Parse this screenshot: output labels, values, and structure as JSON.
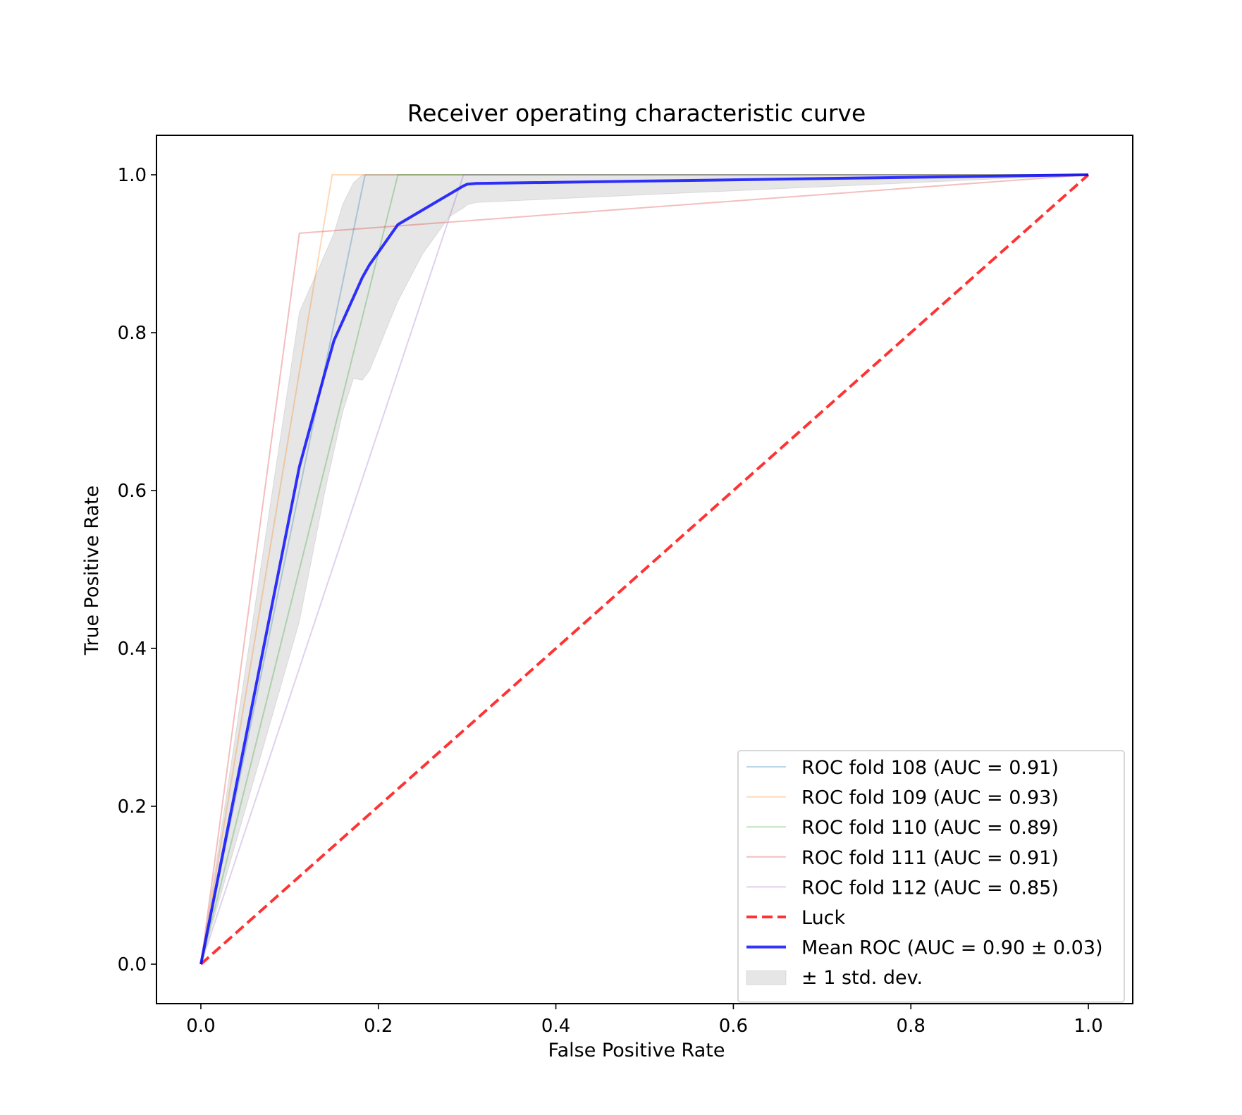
{
  "chart_data": {
    "type": "line",
    "title": "Receiver operating characteristic curve",
    "xlabel": "False Positive Rate",
    "ylabel": "True Positive Rate",
    "xlim": [
      -0.05,
      1.05
    ],
    "ylim": [
      -0.05,
      1.05
    ],
    "xticks": [
      "0.0",
      "0.2",
      "0.4",
      "0.6",
      "0.8",
      "1.0"
    ],
    "yticks": [
      "0.0",
      "0.2",
      "0.4",
      "0.6",
      "0.8",
      "1.0"
    ],
    "xtick_values": [
      0.0,
      0.2,
      0.4,
      0.6,
      0.8,
      1.0
    ],
    "ytick_values": [
      0.0,
      0.2,
      0.4,
      0.6,
      0.8,
      1.0
    ],
    "legend_position": "lower-right",
    "series": [
      {
        "name": "ROC fold 108 (AUC = 0.91)",
        "color": "#1f77b4",
        "alpha": 0.3,
        "style": "solid",
        "x": [
          0.0,
          0.185,
          1.0
        ],
        "y": [
          0.0,
          1.0,
          1.0
        ]
      },
      {
        "name": "ROC fold 109 (AUC = 0.93)",
        "color": "#ff7f0e",
        "alpha": 0.3,
        "style": "solid",
        "x": [
          0.0,
          0.148,
          1.0
        ],
        "y": [
          0.0,
          1.0,
          1.0
        ]
      },
      {
        "name": "ROC fold 110 (AUC = 0.89)",
        "color": "#2ca02c",
        "alpha": 0.3,
        "style": "solid",
        "x": [
          0.0,
          0.222,
          1.0
        ],
        "y": [
          0.0,
          1.0,
          1.0
        ]
      },
      {
        "name": "ROC fold 111 (AUC = 0.91)",
        "color": "#d62728",
        "alpha": 0.3,
        "style": "solid",
        "x": [
          0.0,
          0.111,
          1.0
        ],
        "y": [
          0.0,
          0.926,
          1.0
        ]
      },
      {
        "name": "ROC fold 112 (AUC = 0.85)",
        "color": "#9467bd",
        "alpha": 0.3,
        "style": "solid",
        "x": [
          0.0,
          0.296,
          1.0
        ],
        "y": [
          0.0,
          1.0,
          1.0
        ]
      },
      {
        "name": "Luck",
        "color": "#ff0000",
        "alpha": 0.8,
        "style": "dashed",
        "x": [
          0.0,
          1.0
        ],
        "y": [
          0.0,
          1.0
        ]
      },
      {
        "name": "Mean ROC (AUC = 0.90 ± 0.03)",
        "color": "#0000ff",
        "alpha": 0.8,
        "style": "solid",
        "x": [
          0.0,
          0.111,
          0.14,
          0.15,
          0.182,
          0.19,
          0.222,
          0.296,
          0.3,
          0.31,
          1.0
        ],
        "y": [
          0.0,
          0.63,
          0.75,
          0.79,
          0.87,
          0.886,
          0.937,
          0.986,
          0.988,
          0.989,
          1.0
        ]
      }
    ],
    "band": {
      "name": "± 1 std. dev.",
      "color": "#808080",
      "alpha": 0.2,
      "x": [
        0.0,
        0.111,
        0.14,
        0.15,
        0.16,
        0.172,
        0.182,
        0.19,
        0.222,
        0.25,
        0.28,
        0.296,
        0.3,
        0.31,
        1.0
      ],
      "upper": [
        0.0,
        0.826,
        0.9,
        0.926,
        0.963,
        0.99,
        1.0,
        1.0,
        1.0,
        1.0,
        1.0,
        1.0,
        1.0,
        1.0,
        1.0
      ],
      "lower": [
        0.0,
        0.434,
        0.6,
        0.65,
        0.7,
        0.742,
        0.74,
        0.752,
        0.84,
        0.9,
        0.947,
        0.958,
        0.962,
        0.965,
        1.0
      ]
    },
    "grid": false
  }
}
